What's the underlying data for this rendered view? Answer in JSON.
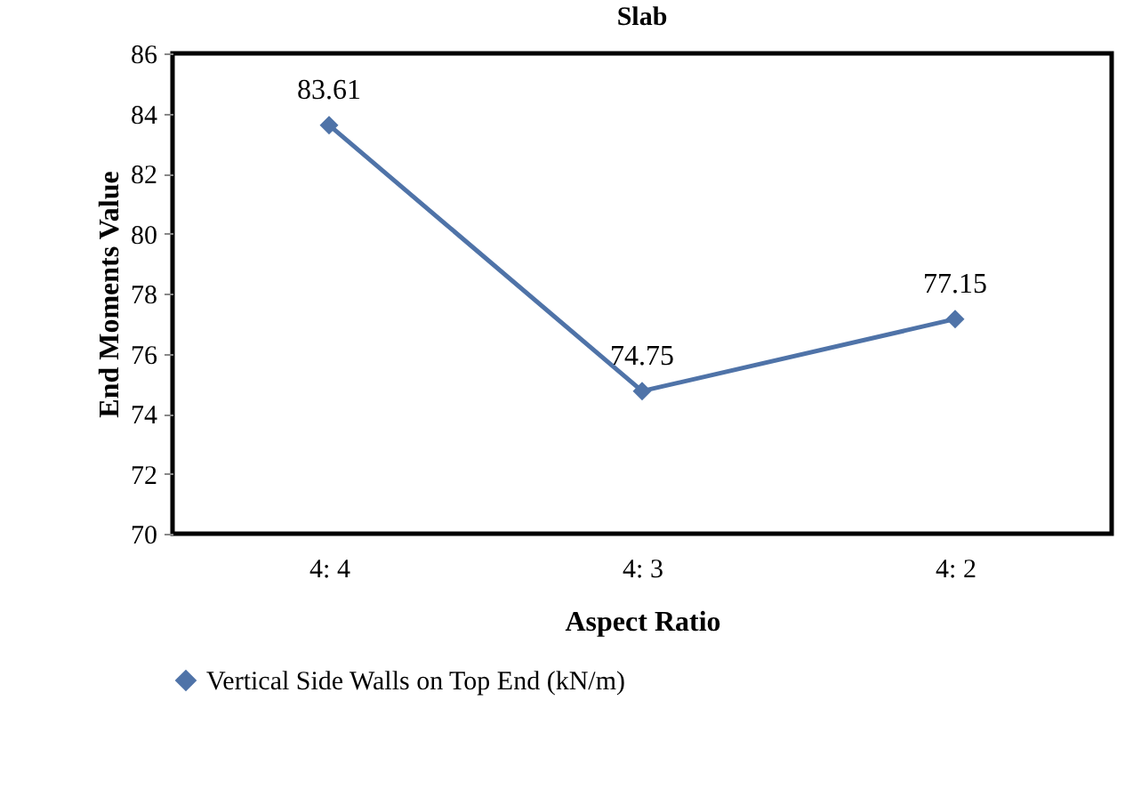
{
  "chart_data": {
    "type": "line",
    "title": "Slab",
    "xlabel": "Aspect Ratio",
    "ylabel": "End Moments Value",
    "categories": [
      "4: 4",
      "4: 3",
      "4: 2"
    ],
    "series": [
      {
        "name": "Vertical Side Walls on Top End (kN/m)",
        "color": "#4f73a8",
        "values": [
          83.61,
          74.75,
          77.15
        ]
      }
    ],
    "ylim": [
      70,
      86
    ],
    "yticks": [
      70,
      72,
      74,
      76,
      78,
      80,
      82,
      84,
      86
    ],
    "data_labels": true,
    "legend": "bottom",
    "marker": "diamond",
    "grid": false
  }
}
